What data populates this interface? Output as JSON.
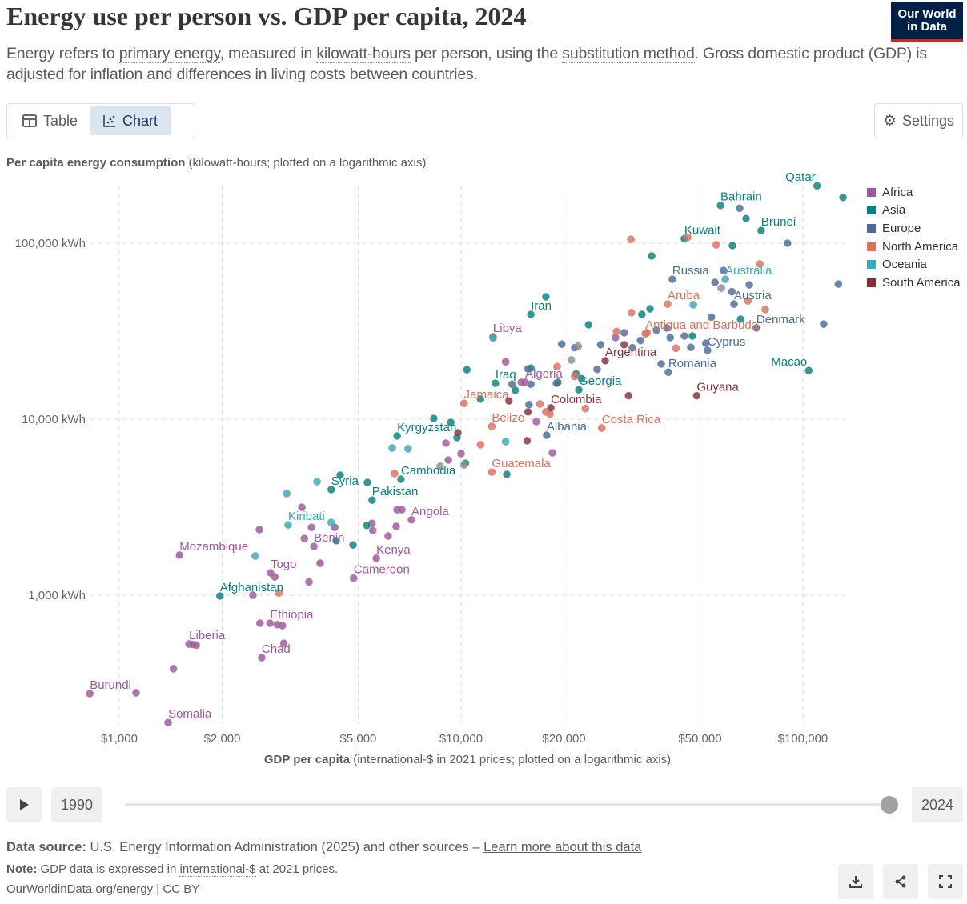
{
  "header": {
    "title": "Energy use per person vs. GDP per capita, 2024",
    "subtitle_parts": [
      "Energy refers to ",
      "primary energy",
      ", measured in ",
      "kilowatt-hours",
      " per person, using the ",
      "substitution method",
      ". Gross domestic product (GDP) is adjusted for inflation and differences in living costs between countries."
    ],
    "logo_line1": "Our World",
    "logo_line2": "in Data"
  },
  "tabs": [
    {
      "label": "Table",
      "icon": "table-icon"
    },
    {
      "label": "Chart",
      "icon": "scatter-chart-icon",
      "active": true
    }
  ],
  "settings_label": "Settings",
  "timeline": {
    "start": "1990",
    "end": "2024",
    "position": 1.0,
    "play_icon": "play-icon"
  },
  "footer": {
    "source_label": "Data source:",
    "source_text": " U.S. Energy Information Administration (2025) and other sources – ",
    "source_link": "Learn more about this data",
    "note_label": "Note:",
    "note_text1": " GDP data is expressed in ",
    "note_link": "international-$",
    "note_text2": " at 2021 prices.",
    "credit": "OurWorldinData.org/energy | CC BY",
    "buttons": [
      "download-icon",
      "share-icon",
      "fullscreen-icon"
    ]
  },
  "chart_data": {
    "type": "scatter",
    "title": "Energy use per person vs. GDP per capita, 2024",
    "ylabel_bold": "Per capita energy consumption",
    "ylabel_rest": " (kilowatt-hours; plotted on a logarithmic axis)",
    "xlabel_bold": "GDP per capita",
    "xlabel_rest": " (international-$ in 2021 prices; plotted on a logarithmic axis)",
    "xscale": "log",
    "yscale": "log",
    "xlim": [
      720,
      135000
    ],
    "ylim": [
      180,
      230000
    ],
    "grid": true,
    "legend_position": "right",
    "xticks": [
      {
        "v": 1000,
        "label": "$1,000"
      },
      {
        "v": 2000,
        "label": "$2,000"
      },
      {
        "v": 5000,
        "label": "$5,000"
      },
      {
        "v": 10000,
        "label": "$10,000"
      },
      {
        "v": 20000,
        "label": "$20,000"
      },
      {
        "v": 50000,
        "label": "$50,000"
      },
      {
        "v": 100000,
        "label": "$100,000"
      }
    ],
    "yticks": [
      {
        "v": 1000,
        "label": "1,000 kWh"
      },
      {
        "v": 10000,
        "label": "10,000 kWh"
      },
      {
        "v": 100000,
        "label": "100,000 kWh"
      }
    ],
    "regions": [
      {
        "name": "Africa",
        "color": "#a2559c"
      },
      {
        "name": "Asia",
        "color": "#00847e"
      },
      {
        "name": "Europe",
        "color": "#4c6a9c"
      },
      {
        "name": "North America",
        "color": "#e56e5a"
      },
      {
        "name": "Oceania",
        "color": "#38aabd"
      },
      {
        "name": "South America",
        "color": "#883039"
      }
    ],
    "other_color": "#8a8d93",
    "points": [
      [
        "Africa",
        820,
        276,
        "Burundi"
      ],
      [
        "Africa",
        1390,
        189,
        "Somalia"
      ],
      [
        "Africa",
        1600,
        528,
        "Liberia"
      ],
      [
        "Africa",
        2610,
        442,
        "Chad"
      ],
      [
        "Africa",
        2760,
        693,
        "Ethiopia"
      ],
      [
        "Africa",
        2770,
        1340,
        "Togo"
      ],
      [
        "Africa",
        1500,
        1690,
        "Mozambique"
      ],
      [
        "Africa",
        3710,
        1890,
        "Benin"
      ],
      [
        "Africa",
        5650,
        1620,
        "Kenya"
      ],
      [
        "Africa",
        4850,
        1250,
        "Cameroon"
      ],
      [
        "Africa",
        7160,
        2680,
        "Angola"
      ],
      [
        "Africa",
        15400,
        16200,
        "Algeria"
      ],
      [
        "Africa",
        12400,
        29400,
        "Libya"
      ],
      [
        "Africa",
        1120,
        279
      ],
      [
        "Africa",
        1440,
        382
      ],
      [
        "Africa",
        1640,
        525
      ],
      [
        "Africa",
        1680,
        520
      ],
      [
        "Africa",
        2460,
        1000
      ],
      [
        "Africa",
        2580,
        693
      ],
      [
        "Africa",
        2900,
        680
      ],
      [
        "Africa",
        3000,
        672
      ],
      [
        "Africa",
        3030,
        533
      ],
      [
        "Africa",
        2570,
        2360
      ],
      [
        "Africa",
        3420,
        3160
      ],
      [
        "Africa",
        3650,
        2430
      ],
      [
        "Africa",
        3480,
        2100
      ],
      [
        "Africa",
        4270,
        2430
      ],
      [
        "Africa",
        3870,
        1520
      ],
      [
        "Africa",
        3590,
        1190
      ],
      [
        "Africa",
        2850,
        1270
      ],
      [
        "Africa",
        6500,
        3060
      ],
      [
        "Africa",
        6710,
        3060
      ],
      [
        "Africa",
        5490,
        2560
      ],
      [
        "Africa",
        5520,
        2330
      ],
      [
        "Africa",
        6460,
        2460
      ],
      [
        "Africa",
        6120,
        2170
      ],
      [
        "Africa",
        9030,
        7310
      ],
      [
        "Africa",
        9180,
        5860
      ],
      [
        "Africa",
        10000,
        6380
      ],
      [
        "Africa",
        13500,
        21200
      ],
      [
        "Africa",
        16600,
        9690
      ],
      [
        "Africa",
        18500,
        6440
      ],
      [
        "Africa",
        28300,
        29100
      ],
      [
        "Africa",
        15000,
        16200
      ],
      [
        "Asia",
        110000,
        212000,
        "Qatar"
      ],
      [
        "Asia",
        57400,
        164000,
        "Bahrain"
      ],
      [
        "Asia",
        75500,
        118000,
        "Brunei"
      ],
      [
        "Asia",
        45000,
        106000,
        "Kuwait"
      ],
      [
        "Asia",
        16000,
        39400,
        "Iran"
      ],
      [
        "Asia",
        12600,
        16000,
        "Iraq"
      ],
      [
        "Asia",
        22100,
        14700,
        "Georgia"
      ],
      [
        "Asia",
        6500,
        8030,
        "Kyrgyzstan"
      ],
      [
        "Asia",
        6670,
        4560,
        "Cambodia"
      ],
      [
        "Asia",
        4170,
        3980,
        "Syria"
      ],
      [
        "Asia",
        5490,
        3470,
        "Pakistan"
      ],
      [
        "Asia",
        1970,
        990,
        "Afghanistan"
      ],
      [
        "Asia",
        104000,
        18900,
        "Macao"
      ],
      [
        "Asia",
        131000,
        182000
      ],
      [
        "Asia",
        68200,
        138000
      ],
      [
        "Asia",
        62200,
        96900
      ],
      [
        "Asia",
        36100,
        84600
      ],
      [
        "Asia",
        17700,
        49600
      ],
      [
        "Asia",
        23600,
        34400
      ],
      [
        "Asia",
        35700,
        42400
      ],
      [
        "Asia",
        33800,
        39400
      ],
      [
        "Asia",
        65700,
        37000
      ],
      [
        "Asia",
        47500,
        29700
      ],
      [
        "Asia",
        10400,
        19100
      ],
      [
        "Asia",
        16000,
        19500
      ],
      [
        "Asia",
        19200,
        16200
      ],
      [
        "Asia",
        21700,
        18100
      ],
      [
        "Asia",
        22500,
        17000
      ],
      [
        "Asia",
        14400,
        14600
      ],
      [
        "Asia",
        8320,
        10100
      ],
      [
        "Asia",
        9330,
        9600
      ],
      [
        "Asia",
        9730,
        7860
      ],
      [
        "Asia",
        10300,
        5620
      ],
      [
        "Asia",
        11400,
        13000
      ],
      [
        "Asia",
        4430,
        4810
      ],
      [
        "Asia",
        5320,
        4370
      ],
      [
        "Asia",
        4830,
        1930
      ],
      [
        "Asia",
        5300,
        2490
      ],
      [
        "Asia",
        4310,
        2040
      ],
      [
        "Asia",
        13600,
        4860
      ],
      [
        "Europe",
        41500,
        62400,
        "Russia"
      ],
      [
        "Europe",
        62900,
        45100,
        "Austria"
      ],
      [
        "Europe",
        73100,
        33000,
        "Denmark"
      ],
      [
        "Europe",
        52600,
        24600,
        "Cyprus"
      ],
      [
        "Europe",
        40400,
        18500,
        "Romania"
      ],
      [
        "Europe",
        17800,
        8110,
        "Albania"
      ],
      [
        "Europe",
        65300,
        158000
      ],
      [
        "Europe",
        90200,
        100000
      ],
      [
        "Europe",
        127000,
        58600
      ],
      [
        "Europe",
        115000,
        34700
      ],
      [
        "Europe",
        55300,
        59900
      ],
      [
        "Europe",
        69700,
        58000
      ],
      [
        "Europe",
        58600,
        70000
      ],
      [
        "Europe",
        62000,
        53000
      ],
      [
        "Europe",
        52000,
        27000
      ],
      [
        "Europe",
        54000,
        38000
      ],
      [
        "Europe",
        47000,
        25600
      ],
      [
        "Europe",
        45000,
        29700
      ],
      [
        "Europe",
        40900,
        29100
      ],
      [
        "Europe",
        40000,
        33000
      ],
      [
        "Europe",
        37300,
        32000
      ],
      [
        "Europe",
        33500,
        28000
      ],
      [
        "Europe",
        31700,
        25500
      ],
      [
        "Europe",
        30000,
        31000
      ],
      [
        "Europe",
        25600,
        26500
      ],
      [
        "Europe",
        19700,
        26700
      ],
      [
        "Europe",
        21500,
        25500
      ],
      [
        "Europe",
        25000,
        19200
      ],
      [
        "Europe",
        15700,
        19300
      ],
      [
        "Europe",
        14100,
        15800
      ],
      [
        "Europe",
        16000,
        15800
      ],
      [
        "Europe",
        19000,
        16000
      ],
      [
        "Europe",
        15800,
        12100
      ],
      [
        "Europe",
        38500,
        20600
      ],
      [
        "North America",
        40200,
        45100,
        "Aruba"
      ],
      [
        "North America",
        34600,
        30600,
        "Antigua and Barbuda"
      ],
      [
        "North America",
        10200,
        12300,
        "Jamaica"
      ],
      [
        "North America",
        12300,
        9100,
        "Belize"
      ],
      [
        "North America",
        25800,
        8910,
        "Costa Rica"
      ],
      [
        "North America",
        12300,
        5010,
        "Guatemala"
      ],
      [
        "North America",
        31400,
        105000
      ],
      [
        "North America",
        46000,
        108000
      ],
      [
        "North America",
        55800,
        97900
      ],
      [
        "North America",
        74800,
        76200
      ],
      [
        "North America",
        69000,
        47000
      ],
      [
        "North America",
        77600,
        42000
      ],
      [
        "North America",
        31500,
        40300
      ],
      [
        "North America",
        28500,
        31500
      ],
      [
        "North America",
        35000,
        31000
      ],
      [
        "North America",
        42500,
        25300
      ],
      [
        "North America",
        19100,
        19900
      ],
      [
        "North America",
        21500,
        17500
      ],
      [
        "North America",
        17000,
        12200
      ],
      [
        "North America",
        17700,
        11000
      ],
      [
        "North America",
        18200,
        10700
      ],
      [
        "North America",
        23100,
        11500
      ],
      [
        "North America",
        11400,
        7160
      ],
      [
        "North America",
        6390,
        4910
      ],
      [
        "North America",
        2930,
        1030
      ],
      [
        "Oceania",
        59300,
        62400,
        "Australia"
      ],
      [
        "Oceania",
        3120,
        2510,
        "Kiribati"
      ],
      [
        "Oceania",
        47800,
        44700
      ],
      [
        "Oceania",
        12400,
        29000
      ],
      [
        "Oceania",
        13500,
        7460
      ],
      [
        "Oceania",
        6290,
        6860
      ],
      [
        "Oceania",
        7000,
        6790
      ],
      [
        "Oceania",
        3790,
        4420
      ],
      [
        "Oceania",
        3090,
        3780
      ],
      [
        "Oceania",
        4170,
        2590
      ],
      [
        "Oceania",
        2500,
        1670
      ],
      [
        "South America",
        26400,
        21500,
        "Argentina"
      ],
      [
        "South America",
        18300,
        11600,
        "Colombia"
      ],
      [
        "South America",
        48900,
        13600,
        "Guyana"
      ],
      [
        "South America",
        30000,
        26500
      ],
      [
        "South America",
        30900,
        13600
      ],
      [
        "South America",
        15700,
        11000
      ],
      [
        "South America",
        15600,
        7540
      ],
      [
        "South America",
        13800,
        12700
      ],
      [
        "South America",
        9790,
        8370
      ],
      [
        "Other",
        21000,
        21700
      ],
      [
        "Other",
        22000,
        26000
      ],
      [
        "Other",
        8690,
        5400
      ],
      [
        "Other",
        57700,
        55600
      ],
      [
        "Other",
        10200,
        5500
      ]
    ]
  }
}
